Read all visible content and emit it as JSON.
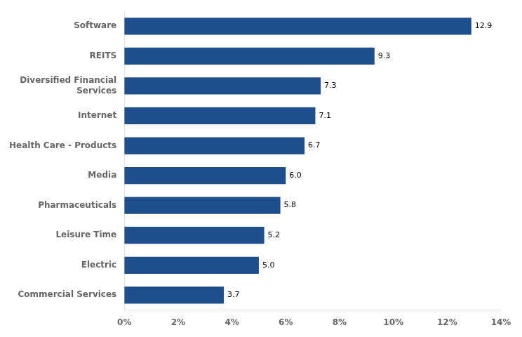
{
  "chart_data": {
    "type": "bar",
    "orientation": "horizontal",
    "categories": [
      "Commercial Services",
      "Electric",
      "Leisure Time",
      "Pharmaceuticals",
      "Media",
      "Health Care - Products",
      "Internet",
      "Diversified Financial\nServices",
      "REITS",
      "Software"
    ],
    "values": [
      3.7,
      5.0,
      5.2,
      5.8,
      6.0,
      6.7,
      7.1,
      7.3,
      9.3,
      12.9
    ],
    "value_labels": [
      "3.7",
      "5.0",
      "5.2",
      "5.8",
      "6.0",
      "6.7",
      "7.1",
      "7.3",
      "9.3",
      "12.9"
    ],
    "data_labels": true,
    "color": "#1F4E8C",
    "xlim": [
      0,
      14
    ],
    "xticks": [
      {
        "value": 0,
        "label": "0%"
      },
      {
        "value": 2,
        "label": "2%"
      },
      {
        "value": 4,
        "label": "4%"
      },
      {
        "value": 6,
        "label": "6%"
      },
      {
        "value": 8,
        "label": "8%"
      },
      {
        "value": 10,
        "label": "10%"
      },
      {
        "value": 12,
        "label": "12%"
      },
      {
        "value": 14,
        "label": "14%"
      }
    ],
    "grid": false
  }
}
